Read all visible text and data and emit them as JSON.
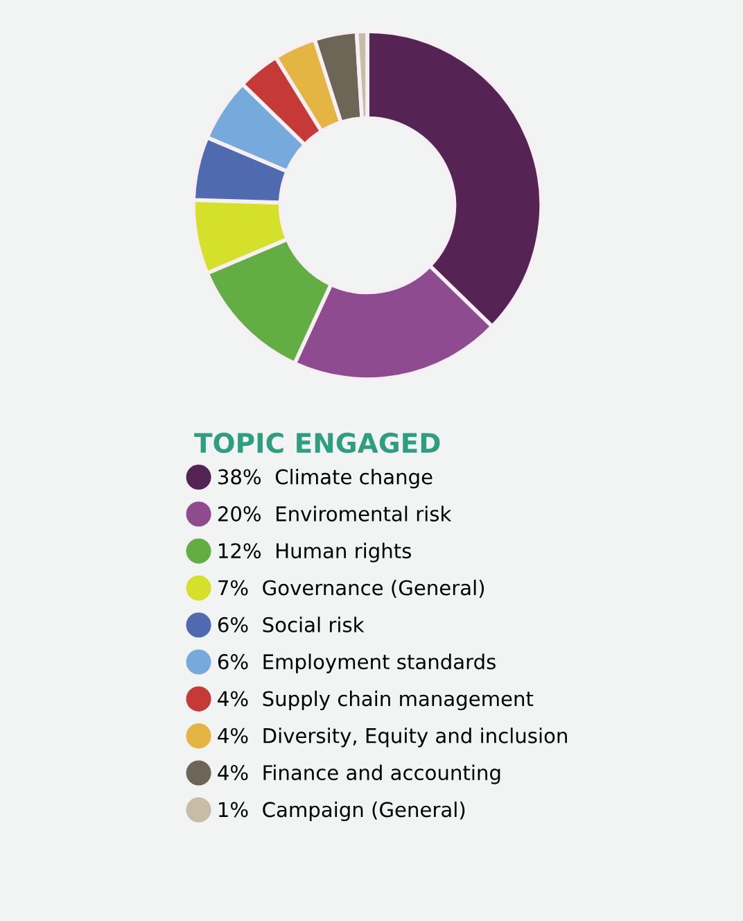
{
  "chart_data": {
    "type": "donut",
    "legend_title": "TOPIC ENGAGED",
    "legend": "bottom",
    "categories": [
      "Climate change",
      "Enviromental risk",
      "Human rights",
      "Governance (General)",
      "Social risk",
      "Employment standards",
      "Supply chain management",
      "Diversity, Equity and inclusion",
      "Finance and accounting",
      "Campaign (General)"
    ],
    "values": [
      38,
      20,
      12,
      7,
      6,
      6,
      4,
      4,
      4,
      1
    ],
    "value_labels": [
      "38%",
      "20%",
      "12%",
      "7%",
      "6%",
      "6%",
      "4%",
      "4%",
      "4%",
      "1%"
    ],
    "colors": [
      "#552354",
      "#8f4b8f",
      "#62ae44",
      "#d4e02a",
      "#4f6aae",
      "#76a9dc",
      "#c53a36",
      "#e5b543",
      "#6d6555",
      "#c9bca6"
    ]
  }
}
